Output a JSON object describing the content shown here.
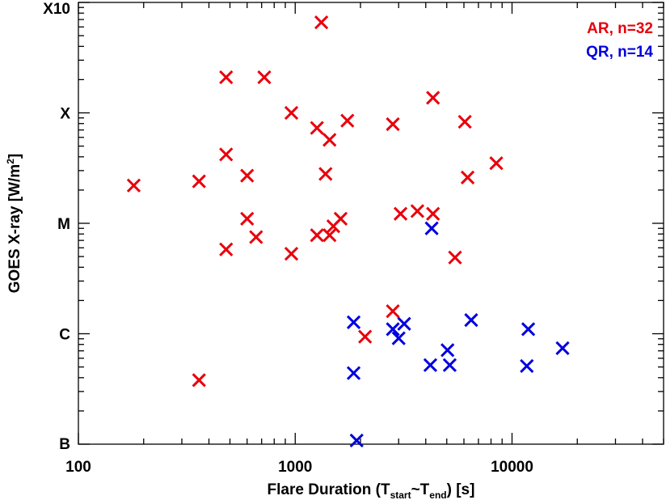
{
  "chart_data": {
    "type": "scatter",
    "xlabel": {
      "main": "Flare Duration (T",
      "sub1": "start",
      "tilde": "~T",
      "sub2": "end",
      "tail": ") [s]"
    },
    "ylabel": {
      "main": "GOES X-ray [W/m",
      "sup": "2",
      "tail": "]"
    },
    "x_scale": "log",
    "xlim": [
      100,
      50000
    ],
    "x_ticks": [
      100,
      1000,
      10000
    ],
    "x_tick_labels": [
      "100",
      "1000",
      "10000"
    ],
    "y_scale": "log",
    "ylim": [
      1e-07,
      0.001
    ],
    "y_ticks": [
      1e-07,
      1e-06,
      1e-05,
      0.0001,
      0.001
    ],
    "y_tick_labels": [
      "B",
      "C",
      "M",
      "X",
      "X10"
    ],
    "grid": false,
    "legend_placement": "top-right",
    "series": [
      {
        "name": "AR, n=32",
        "color": "#e8000b",
        "marker": "x",
        "points": [
          [
            180,
            2.2e-05
          ],
          [
            360,
            2.4e-05
          ],
          [
            360,
            3.8e-07
          ],
          [
            480,
            0.00021
          ],
          [
            480,
            4.2e-05
          ],
          [
            480,
            5.8e-06
          ],
          [
            600,
            2.7e-05
          ],
          [
            600,
            1.1e-05
          ],
          [
            660,
            7.5e-06
          ],
          [
            720,
            0.00021
          ],
          [
            960,
            0.0001
          ],
          [
            960,
            5.3e-06
          ],
          [
            1260,
            7.3e-05
          ],
          [
            1260,
            7.8e-06
          ],
          [
            1320,
            0.00066
          ],
          [
            1380,
            2.8e-05
          ],
          [
            1440,
            5.7e-05
          ],
          [
            1440,
            7.8e-06
          ],
          [
            1500,
            9.4e-06
          ],
          [
            1620,
            1.1e-05
          ],
          [
            1740,
            8.5e-05
          ],
          [
            2100,
            9.4e-07
          ],
          [
            2820,
            7.9e-05
          ],
          [
            2820,
            1.6e-06
          ],
          [
            3060,
            1.22e-05
          ],
          [
            3660,
            1.29e-05
          ],
          [
            4320,
            0.000137
          ],
          [
            4320,
            1.22e-05
          ],
          [
            5460,
            4.9e-06
          ],
          [
            6060,
            8.3e-05
          ],
          [
            6240,
            2.6e-05
          ],
          [
            8460,
            3.5e-05
          ]
        ]
      },
      {
        "name": "QR, n=14",
        "color": "#0000e0",
        "marker": "x",
        "points": [
          [
            1860,
            1.27e-06
          ],
          [
            1860,
            4.4e-07
          ],
          [
            1920,
            1.08e-07
          ],
          [
            2820,
            1.1e-06
          ],
          [
            3000,
            9.1e-07
          ],
          [
            3180,
            1.23e-06
          ],
          [
            4200,
            5.2e-07
          ],
          [
            4260,
            9e-06
          ],
          [
            5040,
            7.1e-07
          ],
          [
            5160,
            5.2e-07
          ],
          [
            6480,
            1.33e-06
          ],
          [
            11700,
            5.1e-07
          ],
          [
            11880,
            1.1e-06
          ],
          [
            17100,
            7.4e-07
          ]
        ]
      }
    ]
  }
}
